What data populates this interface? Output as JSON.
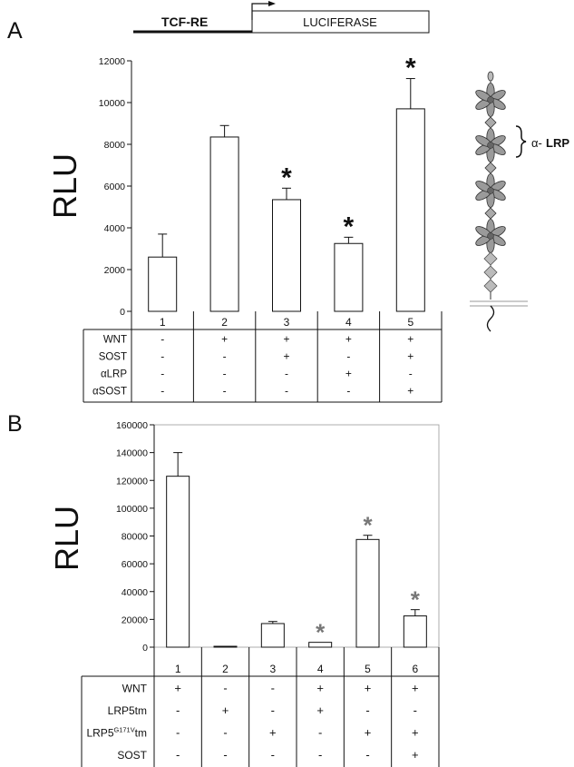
{
  "panel_a": {
    "letter": "A",
    "construct": {
      "promoter": "TCF-RE",
      "reporter": "LUCIFERASE"
    },
    "domain_label_prefix": "α-",
    "domain_label_main": "LRP"
  },
  "panel_b": {
    "letter": "B"
  },
  "chart_data": [
    {
      "type": "bar",
      "ylabel": "RLU",
      "ylim": [
        0,
        12000
      ],
      "yticks": [
        0,
        2000,
        4000,
        6000,
        8000,
        10000,
        12000
      ],
      "categories": [
        "1",
        "2",
        "3",
        "4",
        "5"
      ],
      "values": [
        2600,
        8350,
        5350,
        3250,
        9700
      ],
      "errors": [
        1100,
        550,
        550,
        300,
        1450
      ],
      "significant": [
        false,
        false,
        true,
        true,
        true
      ],
      "significance_marker": "*",
      "grid": false,
      "condition_rows": [
        {
          "label": "WNT",
          "signs": [
            "-",
            "+",
            "+",
            "+",
            "+"
          ]
        },
        {
          "label": "SOST",
          "signs": [
            "-",
            "-",
            "+",
            "-",
            "+"
          ]
        },
        {
          "label": "αLRP",
          "signs": [
            "-",
            "-",
            "-",
            "+",
            "-"
          ]
        },
        {
          "label": "αSOST",
          "signs": [
            "-",
            "-",
            "-",
            "-",
            "+"
          ]
        }
      ]
    },
    {
      "type": "bar",
      "ylabel": "RLU",
      "ylim": [
        0,
        160000
      ],
      "yticks": [
        0,
        20000,
        40000,
        60000,
        80000,
        100000,
        120000,
        140000,
        160000
      ],
      "categories": [
        "1",
        "2",
        "3",
        "4",
        "5",
        "6"
      ],
      "values": [
        123000,
        500,
        17000,
        3500,
        77500,
        22500
      ],
      "errors": [
        17000,
        0,
        1500,
        0,
        3000,
        4500
      ],
      "significant": [
        false,
        false,
        false,
        true,
        true,
        true
      ],
      "significance_marker": "*",
      "grid": false,
      "condition_rows": [
        {
          "label": "WNT",
          "signs": [
            "+",
            "-",
            "-",
            "+",
            "+",
            "+"
          ]
        },
        {
          "label": "LRP5tm",
          "signs": [
            "-",
            "+",
            "-",
            "+",
            "-",
            "-"
          ]
        },
        {
          "label_main": "LRP5",
          "label_sup": "G171V",
          "label_end": "tm",
          "signs": [
            "-",
            "-",
            "+",
            "-",
            "+",
            "+"
          ]
        },
        {
          "label": "SOST",
          "signs": [
            "-",
            "-",
            "-",
            "-",
            "-",
            "+"
          ]
        }
      ]
    }
  ]
}
